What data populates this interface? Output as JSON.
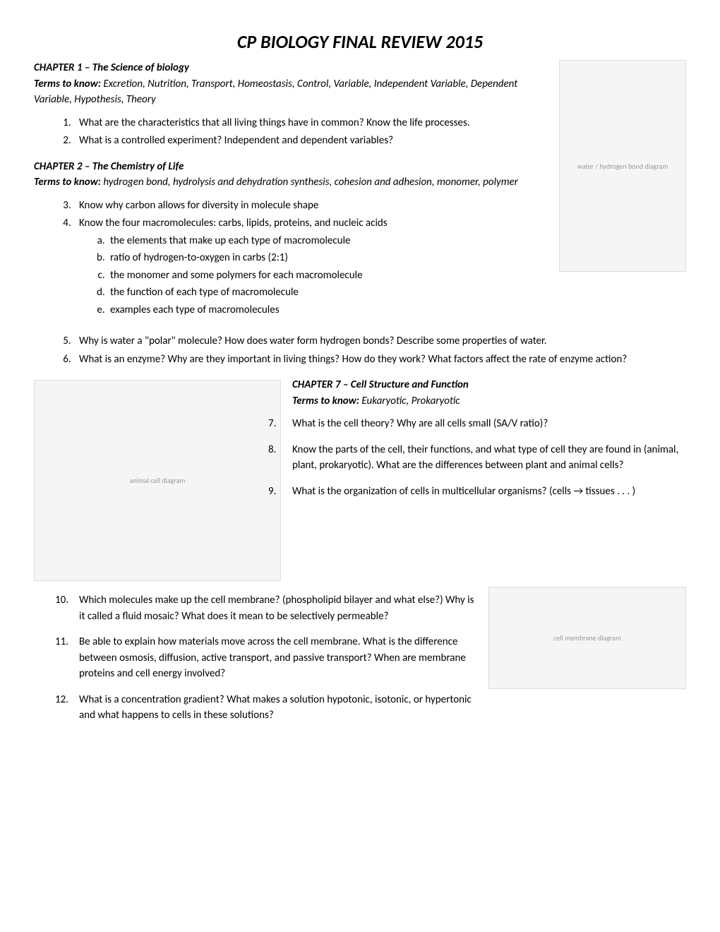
{
  "title": "CP BIOLOGY FINAL REVIEW 2015",
  "chapter1": {
    "heading": "CHAPTER 1 – The Science of biology",
    "termsLabel": "Terms to know:",
    "terms": "Excretion, Nutrition, Transport, Homeostasis, Control, Variable, Independent Variable, Dependent Variable, Hypothesis, Theory",
    "q1": "What are the characteristics that all living things have in common?  Know the                                      life processes.",
    "q2": "What is a controlled experiment?  Independent and dependent variables?"
  },
  "chapter2": {
    "heading": "CHAPTER 2 – The Chemistry of Life",
    "termsLabel": "Terms to know:",
    "terms": "hydrogen bond, hydrolysis and dehydration synthesis, cohesion and adhesion, monomer, polymer",
    "q3": "Know why carbon allows for diversity in molecule shape",
    "q4": "Know the four macromolecules: carbs, lipids, proteins, and nucleic acids",
    "q4a": "the elements that make up each type of macromolecule",
    "q4b": "ratio of hydrogen-to-oxygen in carbs (2:1)",
    "q4c": "the monomer and some polymers for each macromolecule",
    "q4d": "the function of each type of macromolecule",
    "q4e": "examples each type of macromolecules",
    "q5": "Why is water a \"polar\" molecule?  How does water form hydrogen bonds?  Describe some properties of water.",
    "q6": "What is an enzyme?  Why are they important in living things?   How do they work?  What factors affect the rate of enzyme action?"
  },
  "chapter7": {
    "heading": "CHAPTER 7  – Cell Structure and Function",
    "termsLabel": "Terms to know:",
    "terms": "Eukaryotic, Prokaryotic",
    "q7": "What is the cell theory?  Why are all cells small (SA/V ratio)?",
    "q8": "Know the parts of the cell, their functions, and what type of cell they are found in (animal, plant, prokaryotic).  What are the differences between plant and animal cells?",
    "q9": "What is the organization of cells in multicellular organisms?  (cells → tissues . . . )",
    "q10": "Which molecules make up the cell membrane? (phospholipid bilayer and what else?)  Why is it called a fluid mosaic?  What does it mean to be selectively permeable?",
    "q11": "Be able to explain how materials move across the cell membrane.  What is the difference between osmosis, diffusion, active transport, and passive transport?   When are membrane proteins and cell energy involved?",
    "q12": "What is a concentration gradient?  What makes a solution hypotonic, isotonic, or hypertonic and what happens to cells in these solutions?"
  },
  "images": {
    "water": "water / hydrogen bond diagram",
    "cell": "animal cell diagram",
    "membrane": "cell membrane diagram"
  }
}
